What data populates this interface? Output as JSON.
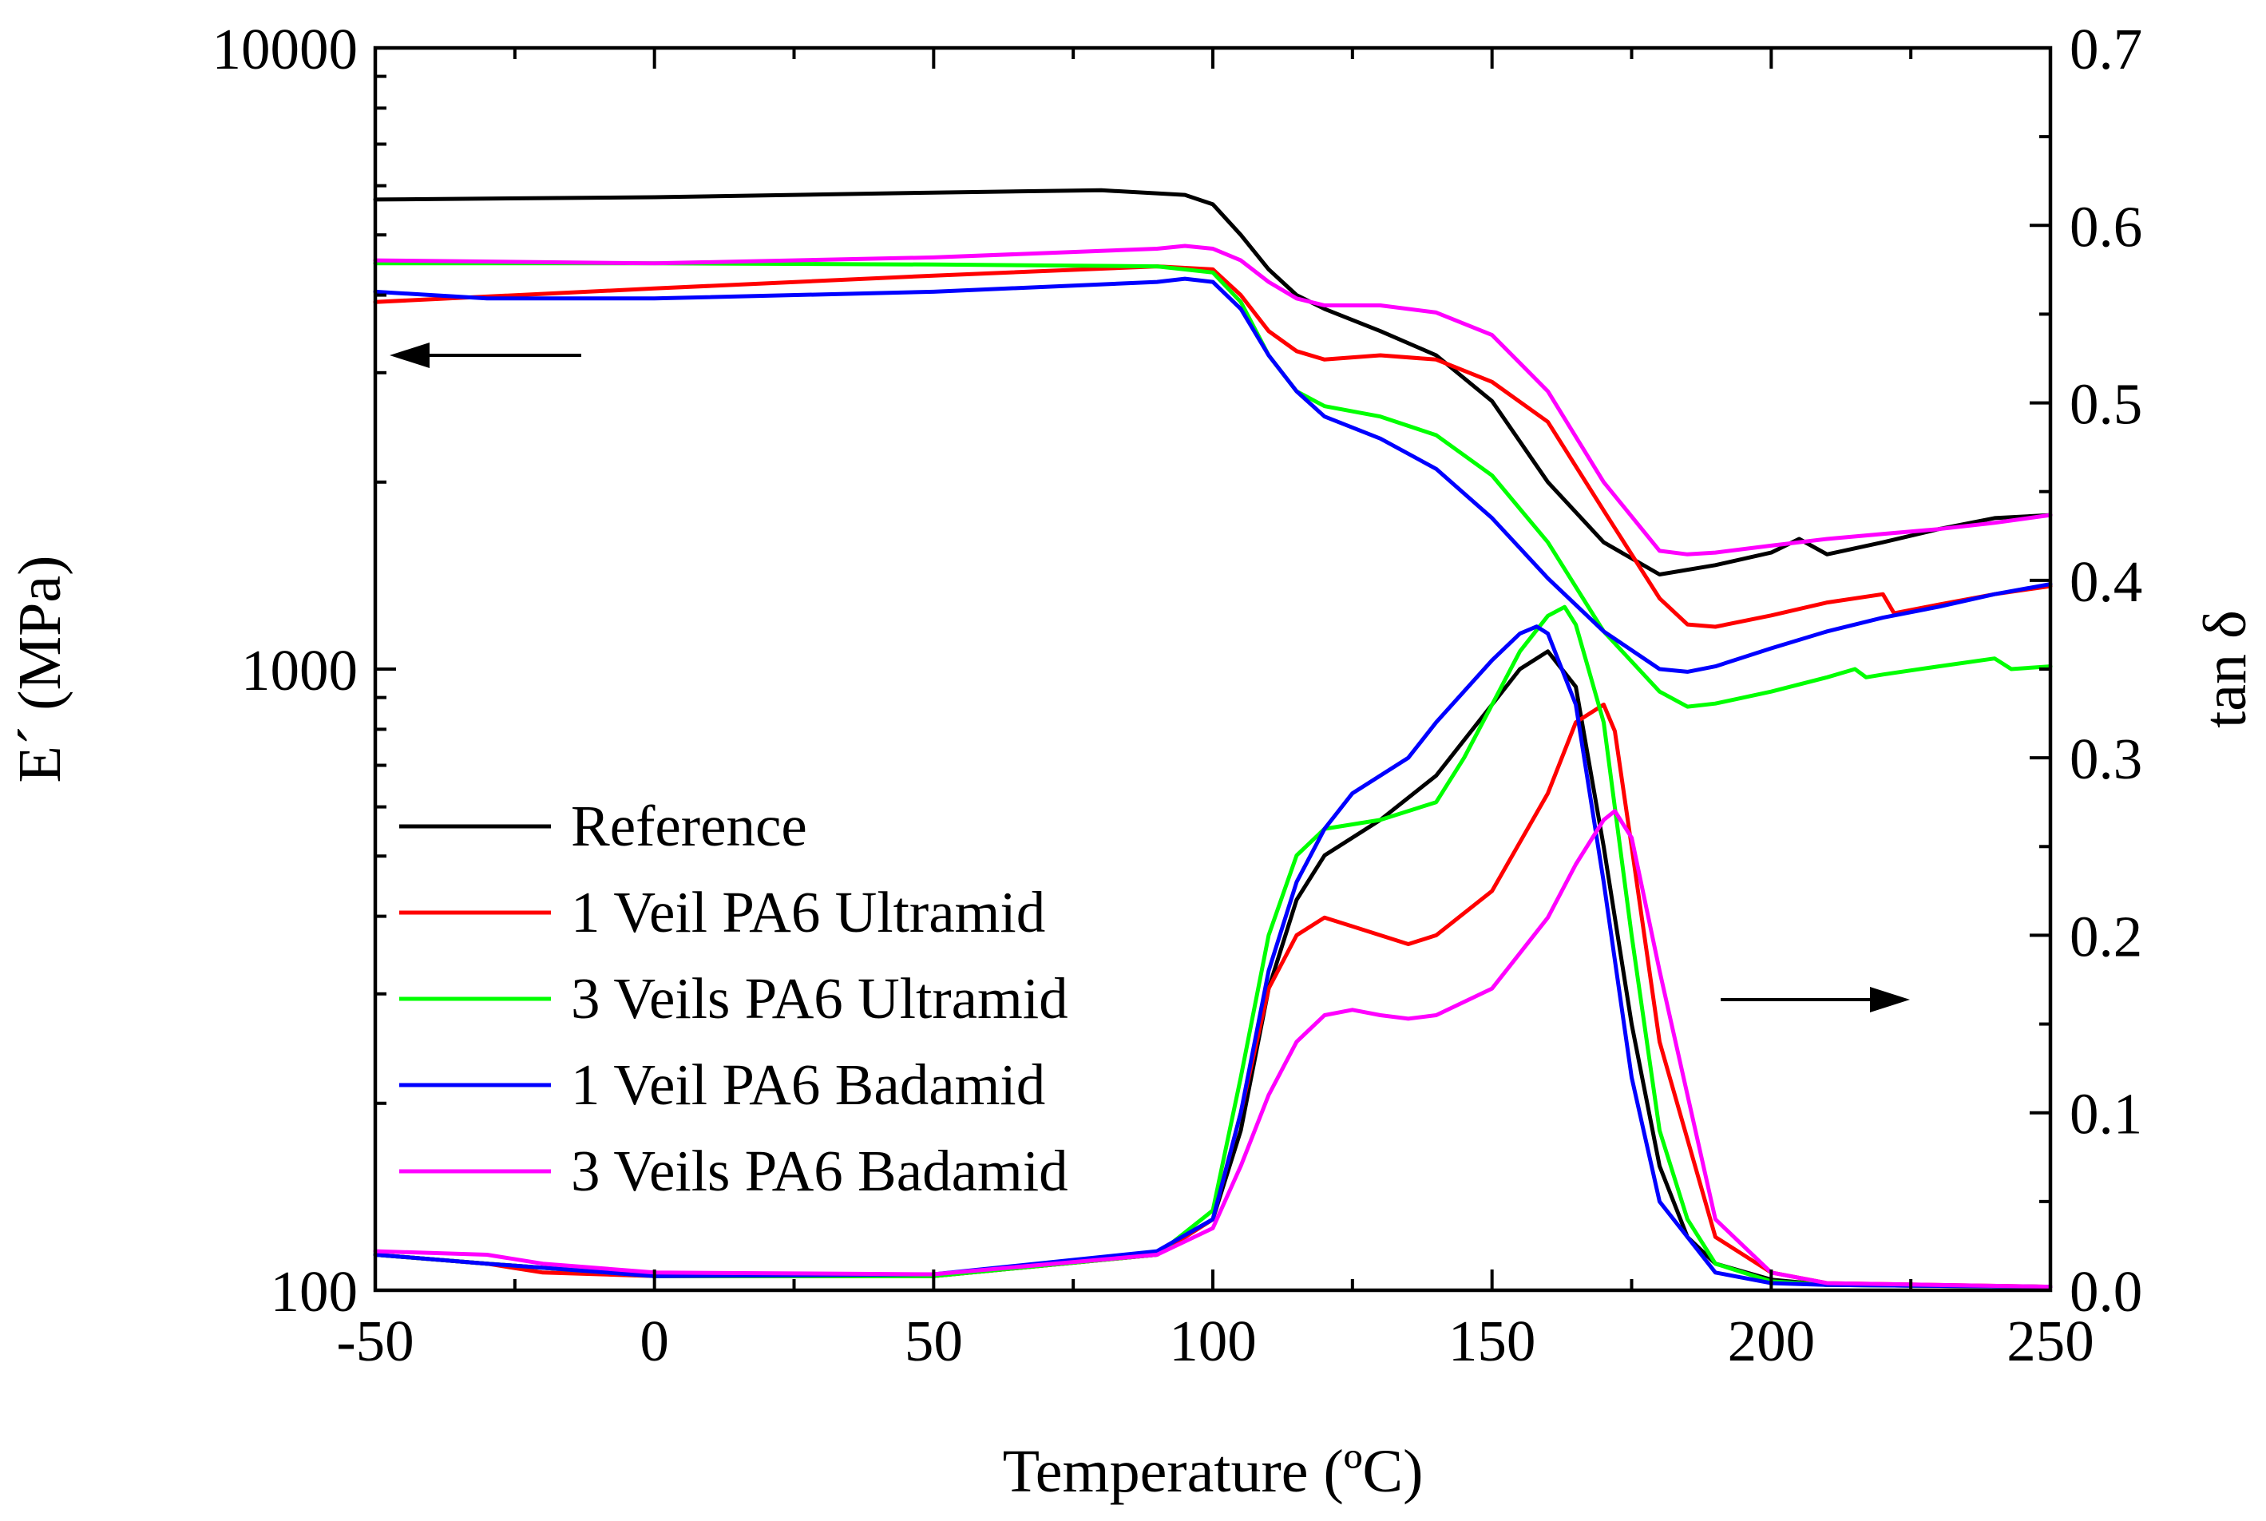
{
  "chart_data": {
    "type": "line",
    "xlabel": "Temperature (ºC)",
    "ylabel_left": "E´ (MPa)",
    "ylabel_right": "tan δ",
    "xlim": [
      -50,
      250
    ],
    "ylim_left": [
      100,
      10000
    ],
    "left_scale": "log",
    "ylim_right": [
      0.0,
      0.7
    ],
    "grid": false,
    "legend_position": "lower-left",
    "x_ticks": [
      "-50",
      "0",
      "50",
      "100",
      "150",
      "200",
      "250"
    ],
    "y_left_ticks": [
      "100",
      "1000",
      "10000"
    ],
    "y_right_ticks": [
      "0.0",
      "0.1",
      "0.2",
      "0.3",
      "0.4",
      "0.5",
      "0.6",
      "0.7"
    ],
    "annotations": [
      {
        "name": "arrow-to-left-axis",
        "direction": "left",
        "refers_to": "E´"
      },
      {
        "name": "arrow-to-right-axis",
        "direction": "right",
        "refers_to": "tan δ"
      }
    ],
    "series": [
      {
        "name": "Reference",
        "color": "#000000",
        "storage_modulus": {
          "x": [
            -50,
            0,
            50,
            80,
            95,
            100,
            105,
            110,
            115,
            120,
            130,
            140,
            150,
            160,
            170,
            180,
            190,
            200,
            205,
            210,
            220,
            230,
            240,
            250
          ],
          "y": [
            5700,
            5750,
            5850,
            5900,
            5800,
            5600,
            5000,
            4400,
            4000,
            3800,
            3500,
            3200,
            2700,
            2000,
            1600,
            1420,
            1470,
            1540,
            1620,
            1530,
            1600,
            1680,
            1750,
            1770
          ]
        },
        "tan_delta": {
          "x": [
            -50,
            -30,
            0,
            50,
            90,
            100,
            105,
            110,
            115,
            120,
            130,
            140,
            150,
            155,
            160,
            165,
            170,
            175,
            180,
            185,
            190,
            200,
            210,
            250
          ],
          "y": [
            0.02,
            0.015,
            0.008,
            0.008,
            0.02,
            0.04,
            0.09,
            0.17,
            0.22,
            0.245,
            0.265,
            0.29,
            0.33,
            0.35,
            0.36,
            0.34,
            0.25,
            0.15,
            0.07,
            0.03,
            0.015,
            0.006,
            0.003,
            0.002
          ]
        }
      },
      {
        "name": "1 Veil PA6 Ultramid",
        "color": "#ff0000",
        "storage_modulus": {
          "x": [
            -50,
            0,
            50,
            90,
            100,
            105,
            110,
            115,
            120,
            130,
            140,
            150,
            160,
            170,
            180,
            185,
            190,
            200,
            210,
            220,
            222,
            230,
            240,
            250
          ],
          "y": [
            3900,
            4100,
            4300,
            4450,
            4400,
            4000,
            3500,
            3250,
            3150,
            3200,
            3150,
            2900,
            2500,
            1800,
            1300,
            1180,
            1170,
            1220,
            1280,
            1320,
            1230,
            1270,
            1320,
            1360
          ]
        },
        "tan_delta": {
          "x": [
            -50,
            -30,
            -20,
            0,
            50,
            90,
            100,
            105,
            110,
            115,
            120,
            125,
            130,
            135,
            140,
            150,
            160,
            165,
            170,
            172,
            175,
            180,
            190,
            200,
            210,
            250
          ],
          "y": [
            0.02,
            0.015,
            0.01,
            0.008,
            0.008,
            0.02,
            0.04,
            0.1,
            0.17,
            0.2,
            0.21,
            0.205,
            0.2,
            0.195,
            0.2,
            0.225,
            0.28,
            0.32,
            0.33,
            0.315,
            0.25,
            0.14,
            0.03,
            0.01,
            0.004,
            0.002
          ]
        }
      },
      {
        "name": "3 Veils PA6 Ultramid",
        "color": "#00ff00",
        "storage_modulus": {
          "x": [
            -50,
            0,
            50,
            90,
            100,
            105,
            110,
            115,
            120,
            130,
            140,
            150,
            160,
            170,
            180,
            185,
            190,
            200,
            210,
            215,
            217,
            220,
            230,
            240,
            243,
            250
          ],
          "y": [
            4500,
            4500,
            4480,
            4450,
            4350,
            3900,
            3200,
            2800,
            2650,
            2550,
            2380,
            2050,
            1600,
            1150,
            920,
            870,
            880,
            920,
            970,
            1000,
            970,
            980,
            1010,
            1040,
            1000,
            1010
          ]
        },
        "tan_delta": {
          "x": [
            -50,
            -30,
            0,
            50,
            90,
            100,
            105,
            110,
            115,
            120,
            130,
            140,
            145,
            150,
            155,
            160,
            163,
            165,
            170,
            175,
            180,
            185,
            190,
            200,
            210,
            250
          ],
          "y": [
            0.02,
            0.015,
            0.008,
            0.008,
            0.02,
            0.045,
            0.12,
            0.2,
            0.245,
            0.26,
            0.265,
            0.275,
            0.3,
            0.33,
            0.36,
            0.38,
            0.385,
            0.375,
            0.32,
            0.2,
            0.09,
            0.04,
            0.015,
            0.005,
            0.003,
            0.002
          ]
        }
      },
      {
        "name": "1 Veil PA6 Badamid",
        "color": "#0000ff",
        "storage_modulus": {
          "x": [
            -50,
            -30,
            0,
            50,
            90,
            95,
            100,
            105,
            110,
            115,
            120,
            130,
            140,
            150,
            160,
            170,
            180,
            185,
            190,
            200,
            210,
            220,
            230,
            240,
            250
          ],
          "y": [
            4050,
            3950,
            3950,
            4050,
            4200,
            4250,
            4200,
            3800,
            3200,
            2800,
            2550,
            2350,
            2100,
            1750,
            1400,
            1150,
            1000,
            990,
            1010,
            1080,
            1150,
            1210,
            1260,
            1320,
            1370
          ]
        },
        "tan_delta": {
          "x": [
            -50,
            -30,
            0,
            50,
            90,
            100,
            105,
            110,
            115,
            120,
            125,
            130,
            135,
            140,
            150,
            155,
            158,
            160,
            165,
            170,
            175,
            180,
            190,
            200,
            210,
            250
          ],
          "y": [
            0.02,
            0.015,
            0.008,
            0.009,
            0.022,
            0.04,
            0.1,
            0.18,
            0.23,
            0.26,
            0.28,
            0.29,
            0.3,
            0.32,
            0.355,
            0.37,
            0.374,
            0.37,
            0.33,
            0.23,
            0.12,
            0.05,
            0.01,
            0.004,
            0.003,
            0.002
          ]
        }
      },
      {
        "name": "3 Veils PA6 Badamid",
        "color": "#ff00ff",
        "storage_modulus": {
          "x": [
            -50,
            0,
            50,
            90,
            95,
            100,
            105,
            110,
            115,
            120,
            130,
            140,
            150,
            160,
            170,
            180,
            185,
            190,
            200,
            210,
            220,
            230,
            240,
            250
          ],
          "y": [
            4550,
            4500,
            4600,
            4750,
            4800,
            4750,
            4550,
            4200,
            3950,
            3850,
            3850,
            3750,
            3450,
            2800,
            2000,
            1550,
            1530,
            1540,
            1580,
            1620,
            1650,
            1680,
            1720,
            1770
          ]
        },
        "tan_delta": {
          "x": [
            -50,
            -30,
            -20,
            0,
            50,
            90,
            100,
            105,
            110,
            115,
            120,
            125,
            130,
            135,
            140,
            150,
            160,
            165,
            170,
            172,
            175,
            180,
            190,
            200,
            210,
            250
          ],
          "y": [
            0.022,
            0.02,
            0.015,
            0.01,
            0.009,
            0.02,
            0.035,
            0.07,
            0.11,
            0.14,
            0.155,
            0.158,
            0.155,
            0.153,
            0.155,
            0.17,
            0.21,
            0.24,
            0.265,
            0.27,
            0.255,
            0.18,
            0.04,
            0.01,
            0.004,
            0.002
          ]
        }
      }
    ]
  }
}
